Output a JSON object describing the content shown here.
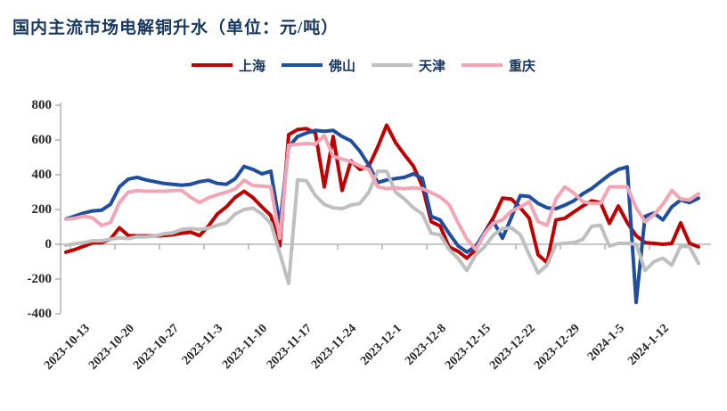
{
  "title": "国内主流市场电解铜升水（单位：元/吨）",
  "colors": {
    "background": "#FFFFFF",
    "title_text": "#17375E",
    "legend_text": "#17375E",
    "axis_line": "#A6A6A6",
    "axis_text": "#262626"
  },
  "y_axis_labels": [
    "800",
    "600",
    "400",
    "200",
    "0",
    "-200",
    "-400"
  ],
  "x_axis_labels": [
    "2023-10-13",
    "2023-10-20",
    "2023-10-27",
    "2023-11-3",
    "2023-11-10",
    "2023-11-17",
    "2023-11-24",
    "2023-12-1",
    "2023-12-8",
    "2023-12-15",
    "2023-12-22",
    "2023-12-29",
    "2024-1-5",
    "2024-1-12"
  ],
  "chart_data": {
    "type": "line",
    "title": "国内主流市场电解铜升水",
    "unit": "元/吨",
    "xlabel": "",
    "ylabel": "",
    "ylim": [
      -400,
      800
    ],
    "y_ticks": [
      800,
      600,
      400,
      200,
      0,
      -200,
      -400
    ],
    "grid": false,
    "legend_position": "top",
    "x": [
      "2023-10-13",
      "2023-10-16",
      "2023-10-17",
      "2023-10-18",
      "2023-10-19",
      "2023-10-20",
      "2023-10-23",
      "2023-10-24",
      "2023-10-25",
      "2023-10-26",
      "2023-10-27",
      "2023-10-30",
      "2023-10-31",
      "2023-11-1",
      "2023-11-2",
      "2023-11-3",
      "2023-11-6",
      "2023-11-7",
      "2023-11-8",
      "2023-11-9",
      "2023-11-10",
      "2023-11-13",
      "2023-11-14",
      "2023-11-15",
      "2023-11-16",
      "2023-11-17",
      "2023-11-20",
      "2023-11-21",
      "2023-11-22",
      "2023-11-23",
      "2023-11-24",
      "2023-11-27",
      "2023-11-28",
      "2023-11-29",
      "2023-11-30",
      "2023-12-1",
      "2023-12-4",
      "2023-12-5",
      "2023-12-6",
      "2023-12-7",
      "2023-12-8",
      "2023-12-11",
      "2023-12-12",
      "2023-12-13",
      "2023-12-14",
      "2023-12-15",
      "2023-12-18",
      "2023-12-19",
      "2023-12-20",
      "2023-12-21",
      "2023-12-22",
      "2023-12-25",
      "2023-12-26",
      "2023-12-27",
      "2023-12-28",
      "2023-12-29",
      "2024-1-1",
      "2024-1-2",
      "2024-1-3",
      "2024-1-4",
      "2024-1-5",
      "2024-1-8",
      "2024-1-9",
      "2024-1-10",
      "2024-1-11",
      "2024-1-12",
      "2024-1-15",
      "2024-1-16",
      "2024-1-17",
      "2024-1-18",
      "2024-1-19",
      "2024-1-22"
    ],
    "x_tick_indices": [
      0,
      5,
      10,
      15,
      20,
      25,
      30,
      35,
      40,
      45,
      50,
      55,
      60,
      65
    ],
    "x_tick_labels": [
      "2023-10-13",
      "2023-10-20",
      "2023-10-27",
      "2023-11-3",
      "2023-11-10",
      "2023-11-17",
      "2023-11-24",
      "2023-12-1",
      "2023-12-8",
      "2023-12-15",
      "2023-12-22",
      "2023-12-29",
      "2024-1-5",
      "2024-1-12"
    ],
    "series": [
      {
        "name": "上海",
        "key": "shanghai",
        "color": "#C00000",
        "values": [
          -45,
          -30,
          -12,
          8,
          10,
          30,
          95,
          50,
          48,
          48,
          48,
          50,
          55,
          63,
          70,
          50,
          105,
          175,
          215,
          270,
          305,
          268,
          215,
          165,
          -10,
          630,
          660,
          665,
          640,
          330,
          620,
          310,
          480,
          430,
          450,
          560,
          685,
          585,
          515,
          450,
          335,
          130,
          105,
          -15,
          -40,
          -80,
          -30,
          70,
          155,
          265,
          260,
          210,
          150,
          -60,
          -105,
          140,
          150,
          185,
          220,
          250,
          240,
          120,
          220,
          125,
          50,
          10,
          5,
          0,
          5,
          123,
          5,
          -15
        ]
      },
      {
        "name": "佛山",
        "key": "foshan",
        "color": "#1F4E9E",
        "values": [
          145,
          162,
          180,
          192,
          196,
          230,
          330,
          375,
          385,
          370,
          360,
          350,
          345,
          340,
          345,
          360,
          368,
          350,
          345,
          377,
          448,
          430,
          405,
          420,
          110,
          560,
          620,
          640,
          655,
          650,
          655,
          620,
          595,
          535,
          455,
          355,
          370,
          378,
          385,
          405,
          380,
          160,
          140,
          63,
          -8,
          -45,
          -12,
          70,
          130,
          35,
          155,
          280,
          275,
          235,
          210,
          205,
          225,
          250,
          290,
          320,
          360,
          400,
          430,
          445,
          -335,
          160,
          180,
          140,
          215,
          255,
          240,
          265
        ]
      },
      {
        "name": "天津",
        "key": "tianjin",
        "color": "#BFBFBF",
        "values": [
          -5,
          3,
          9,
          20,
          20,
          29,
          38,
          33,
          43,
          43,
          48,
          60,
          65,
          85,
          90,
          85,
          93,
          110,
          123,
          174,
          200,
          208,
          174,
          120,
          -50,
          -225,
          370,
          365,
          280,
          230,
          210,
          205,
          225,
          235,
          300,
          420,
          420,
          300,
          260,
          210,
          175,
          63,
          55,
          -30,
          -80,
          -150,
          -60,
          -15,
          55,
          90,
          95,
          55,
          -60,
          -165,
          -120,
          0,
          5,
          10,
          27,
          103,
          110,
          -10,
          5,
          5,
          0,
          -150,
          -100,
          -80,
          -120,
          -10,
          -15,
          -110
        ]
      },
      {
        "name": "重庆",
        "key": "chongqing",
        "color": "#F4A5B5",
        "values": [
          143,
          150,
          162,
          152,
          108,
          125,
          240,
          300,
          308,
          305,
          305,
          305,
          308,
          310,
          270,
          240,
          267,
          285,
          300,
          318,
          368,
          338,
          335,
          330,
          35,
          570,
          575,
          580,
          575,
          625,
          505,
          490,
          475,
          450,
          430,
          330,
          320,
          325,
          320,
          325,
          320,
          297,
          272,
          229,
          125,
          30,
          -30,
          62,
          122,
          140,
          190,
          215,
          245,
          130,
          110,
          260,
          330,
          295,
          245,
          235,
          235,
          330,
          330,
          330,
          210,
          130,
          170,
          230,
          310,
          260,
          255,
          290
        ]
      }
    ]
  }
}
